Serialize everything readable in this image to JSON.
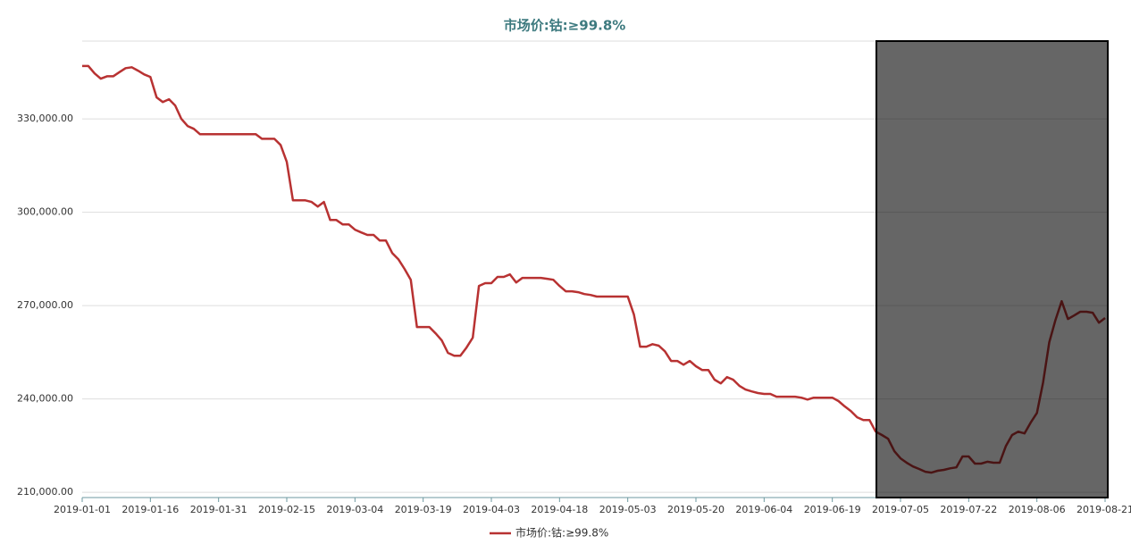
{
  "chart_data": {
    "type": "line",
    "title": "市场价:钴:≥99.8%",
    "categories": [
      "2019-01-01",
      null,
      null,
      null,
      null,
      null,
      null,
      null,
      null,
      null,
      null,
      "2019-01-16",
      null,
      null,
      null,
      null,
      null,
      null,
      null,
      null,
      null,
      null,
      "2019-01-31",
      null,
      null,
      null,
      null,
      null,
      null,
      null,
      null,
      null,
      null,
      "2019-02-15",
      null,
      null,
      null,
      null,
      null,
      null,
      null,
      null,
      null,
      null,
      "2019-03-04",
      null,
      null,
      null,
      null,
      null,
      null,
      null,
      null,
      null,
      null,
      "2019-03-19",
      null,
      null,
      null,
      null,
      null,
      null,
      null,
      null,
      null,
      null,
      "2019-04-03",
      null,
      null,
      null,
      null,
      null,
      null,
      null,
      null,
      null,
      null,
      "2019-04-18",
      null,
      null,
      null,
      null,
      null,
      null,
      null,
      null,
      null,
      null,
      "2019-05-03",
      null,
      null,
      null,
      null,
      null,
      null,
      null,
      null,
      null,
      null,
      "2019-05-20",
      null,
      null,
      null,
      null,
      null,
      null,
      null,
      null,
      null,
      null,
      "2019-06-04",
      null,
      null,
      null,
      null,
      null,
      null,
      null,
      null,
      null,
      null,
      "2019-06-19",
      null,
      null,
      null,
      null,
      null,
      null,
      null,
      null,
      null,
      null,
      "2019-07-05",
      null,
      null,
      null,
      null,
      null,
      null,
      null,
      null,
      null,
      null,
      "2019-07-22",
      null,
      null,
      null,
      null,
      null,
      null,
      null,
      null,
      null,
      null,
      "2019-08-06",
      null,
      null,
      null,
      null,
      null,
      null,
      null,
      null,
      null,
      null,
      "2019-08-21"
    ],
    "series": [
      {
        "name": "市场价:钴:≥99.8%",
        "color": "#b83232",
        "values": [
          347000,
          347000,
          344600,
          342900,
          343700,
          343700,
          345000,
          346300,
          346600,
          345500,
          344300,
          343500,
          336900,
          335400,
          336300,
          334300,
          330000,
          327700,
          326800,
          325100,
          325100,
          325100,
          325100,
          325100,
          325100,
          325100,
          325100,
          325100,
          325100,
          323600,
          323600,
          323600,
          321600,
          316200,
          303800,
          303800,
          303800,
          303300,
          301800,
          303300,
          297500,
          297500,
          296100,
          296100,
          294400,
          293500,
          292700,
          292700,
          290900,
          290900,
          286900,
          284900,
          281800,
          278300,
          263100,
          263100,
          263100,
          261100,
          258800,
          254800,
          253900,
          253900,
          256500,
          259700,
          276300,
          277200,
          277200,
          279200,
          279200,
          280000,
          277400,
          278900,
          278900,
          278900,
          278900,
          278600,
          278300,
          276300,
          274600,
          274600,
          274300,
          273700,
          273400,
          272900,
          272900,
          272900,
          272900,
          272900,
          272900,
          267100,
          256800,
          256800,
          257600,
          257100,
          255300,
          252200,
          252200,
          251000,
          252200,
          250500,
          249300,
          249300,
          246200,
          245000,
          247000,
          246200,
          244200,
          243000,
          242400,
          241900,
          241600,
          241600,
          240700,
          240700,
          240700,
          240700,
          240400,
          239800,
          240400,
          240400,
          240400,
          240400,
          239300,
          237600,
          236100,
          234100,
          233200,
          233200,
          229500,
          228400,
          227200,
          223200,
          220900,
          219500,
          218300,
          217500,
          216600,
          216300,
          216900,
          217200,
          217700,
          218000,
          221500,
          221500,
          219200,
          219200,
          219800,
          219500,
          219500,
          224900,
          228400,
          229500,
          228900,
          232400,
          235500,
          245300,
          258200,
          265400,
          271400,
          265700,
          266800,
          268000,
          268000,
          267700,
          264500,
          266000
        ]
      }
    ],
    "ylim": [
      208300,
      355000
    ],
    "yticks": [
      {
        "value": 210000,
        "label": "210,000.00"
      },
      {
        "value": 240000,
        "label": "240,000.00"
      },
      {
        "value": 270000,
        "label": "270,000.00"
      },
      {
        "value": 300000,
        "label": "300,000.00"
      },
      {
        "value": 330000,
        "label": "330,000.00"
      }
    ],
    "grid": true
  }
}
